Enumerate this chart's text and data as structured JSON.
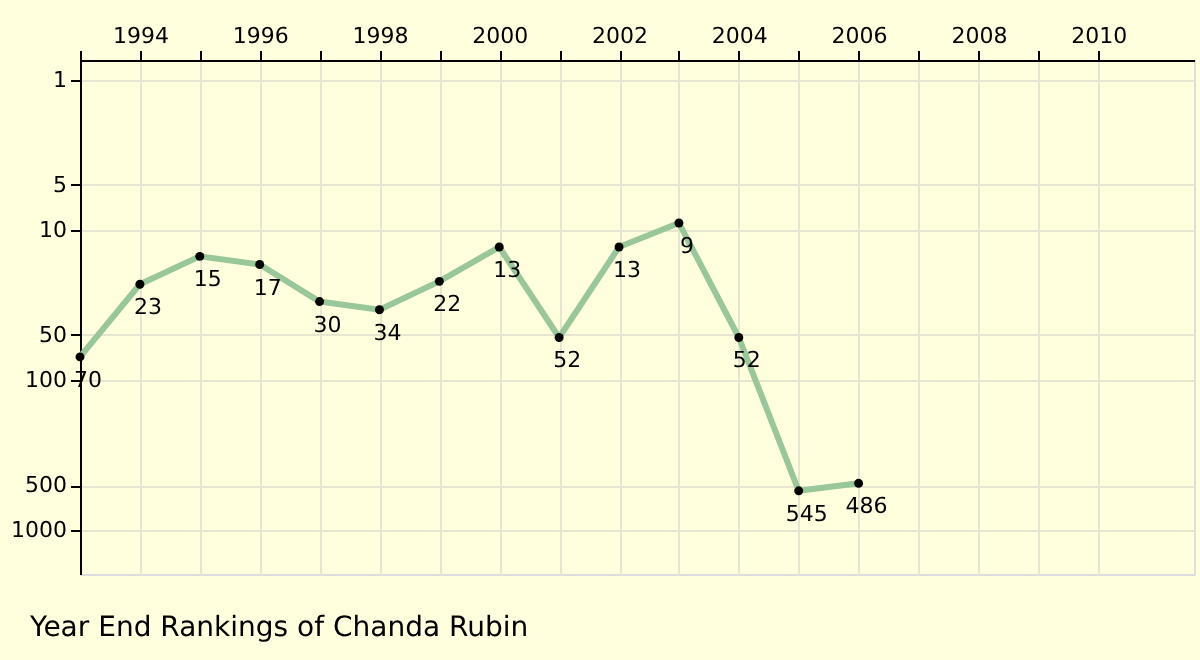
{
  "chart_data": {
    "type": "line",
    "title": "Year End Rankings of  Chanda Rubin",
    "x": [
      1993,
      1994,
      1995,
      1996,
      1997,
      1998,
      1999,
      2000,
      2001,
      2002,
      2003,
      2004,
      2005,
      2006
    ],
    "series": [
      {
        "color": "#99c799",
        "values": [
          70,
          23,
          15,
          17,
          30,
          34,
          22,
          13,
          52,
          13,
          9,
          52,
          545,
          486
        ]
      }
    ],
    "xlim": [
      1993,
      2011.6
    ],
    "xticks": [
      {
        "value": 1993,
        "label": null
      },
      1994,
      {
        "value": 1995,
        "label": null
      },
      1996,
      {
        "value": 1997,
        "label": null
      },
      1998,
      {
        "value": 1999,
        "label": null
      },
      2000,
      {
        "value": 2001,
        "label": null
      },
      2002,
      {
        "value": 2003,
        "label": null
      },
      2004,
      {
        "value": 2005,
        "label": null
      },
      2006,
      {
        "value": 2007,
        "label": null
      },
      2008,
      {
        "value": 2009,
        "label": null
      },
      2010
    ],
    "ylim": [
      1950,
      0.74
    ],
    "yticks": [
      1,
      5,
      10,
      50,
      100,
      500,
      1000
    ],
    "log": "y",
    "grid": true,
    "data_labels": true,
    "marker": "circle",
    "line_style": "solid"
  }
}
